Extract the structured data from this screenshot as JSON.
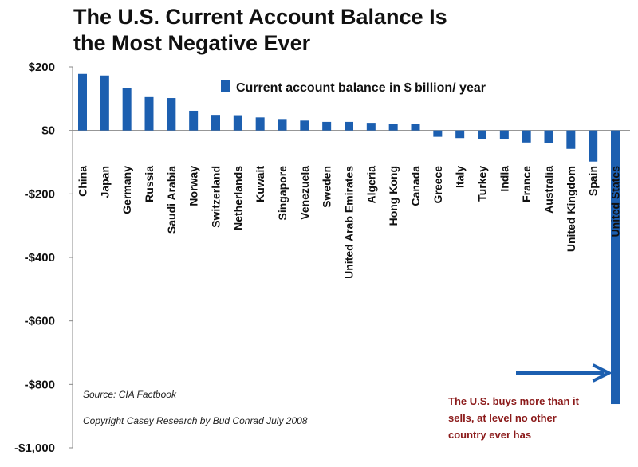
{
  "chart_data": {
    "type": "bar",
    "title": "The U.S. Current Account Balance Is the Most Negative Ever",
    "title_lines": [
      "The U.S. Current Account Balance Is",
      "the Most Negative Ever"
    ],
    "series": [
      {
        "name": "Current account balance in $ billion/ year",
        "color": "#1C5FB0",
        "values": [
          178,
          173,
          134,
          105,
          102,
          62,
          49,
          48,
          41,
          36,
          31,
          27,
          27,
          24,
          20,
          20,
          -20,
          -24,
          -26,
          -26,
          -38,
          -40,
          -58,
          -98,
          -862
        ]
      }
    ],
    "categories": [
      "China",
      "Japan",
      "Germany",
      "Russia",
      "Saudi Arabia",
      "Norway",
      "Switzerland",
      "Netherlands",
      "Kuwait",
      "Singapore",
      "Venezuela",
      "Sweden",
      "United Arab Emirates",
      "Algeria",
      "Hong Kong",
      "Canada",
      "Greece",
      "Italy",
      "Turkey",
      "India",
      "France",
      "Australia",
      "United Kingdom",
      "Spain",
      "United States"
    ],
    "yticks": [
      200,
      0,
      -200,
      -400,
      -600,
      -800,
      -1000
    ],
    "ytick_labels": [
      "$200",
      "$0",
      "-$200",
      "-$400",
      "-$600",
      "-$800",
      "-$1,000"
    ],
    "ylim": [
      -1000,
      200
    ],
    "xlabel": "",
    "ylabel": "",
    "legend": {
      "label": "Current account balance in $ billion/ year",
      "position": "top-center"
    },
    "notes": {
      "source": "Source: CIA Factbook",
      "copyright": "Copyright Casey Research by Bud Conrad July 2008"
    },
    "annotation": {
      "lines": [
        "The U.S. buys more than it",
        "sells, at level no other",
        "country ever has"
      ],
      "color": "#8B1A1A",
      "arrow_color": "#1C5FB0",
      "target": "United States"
    },
    "grid": false
  }
}
